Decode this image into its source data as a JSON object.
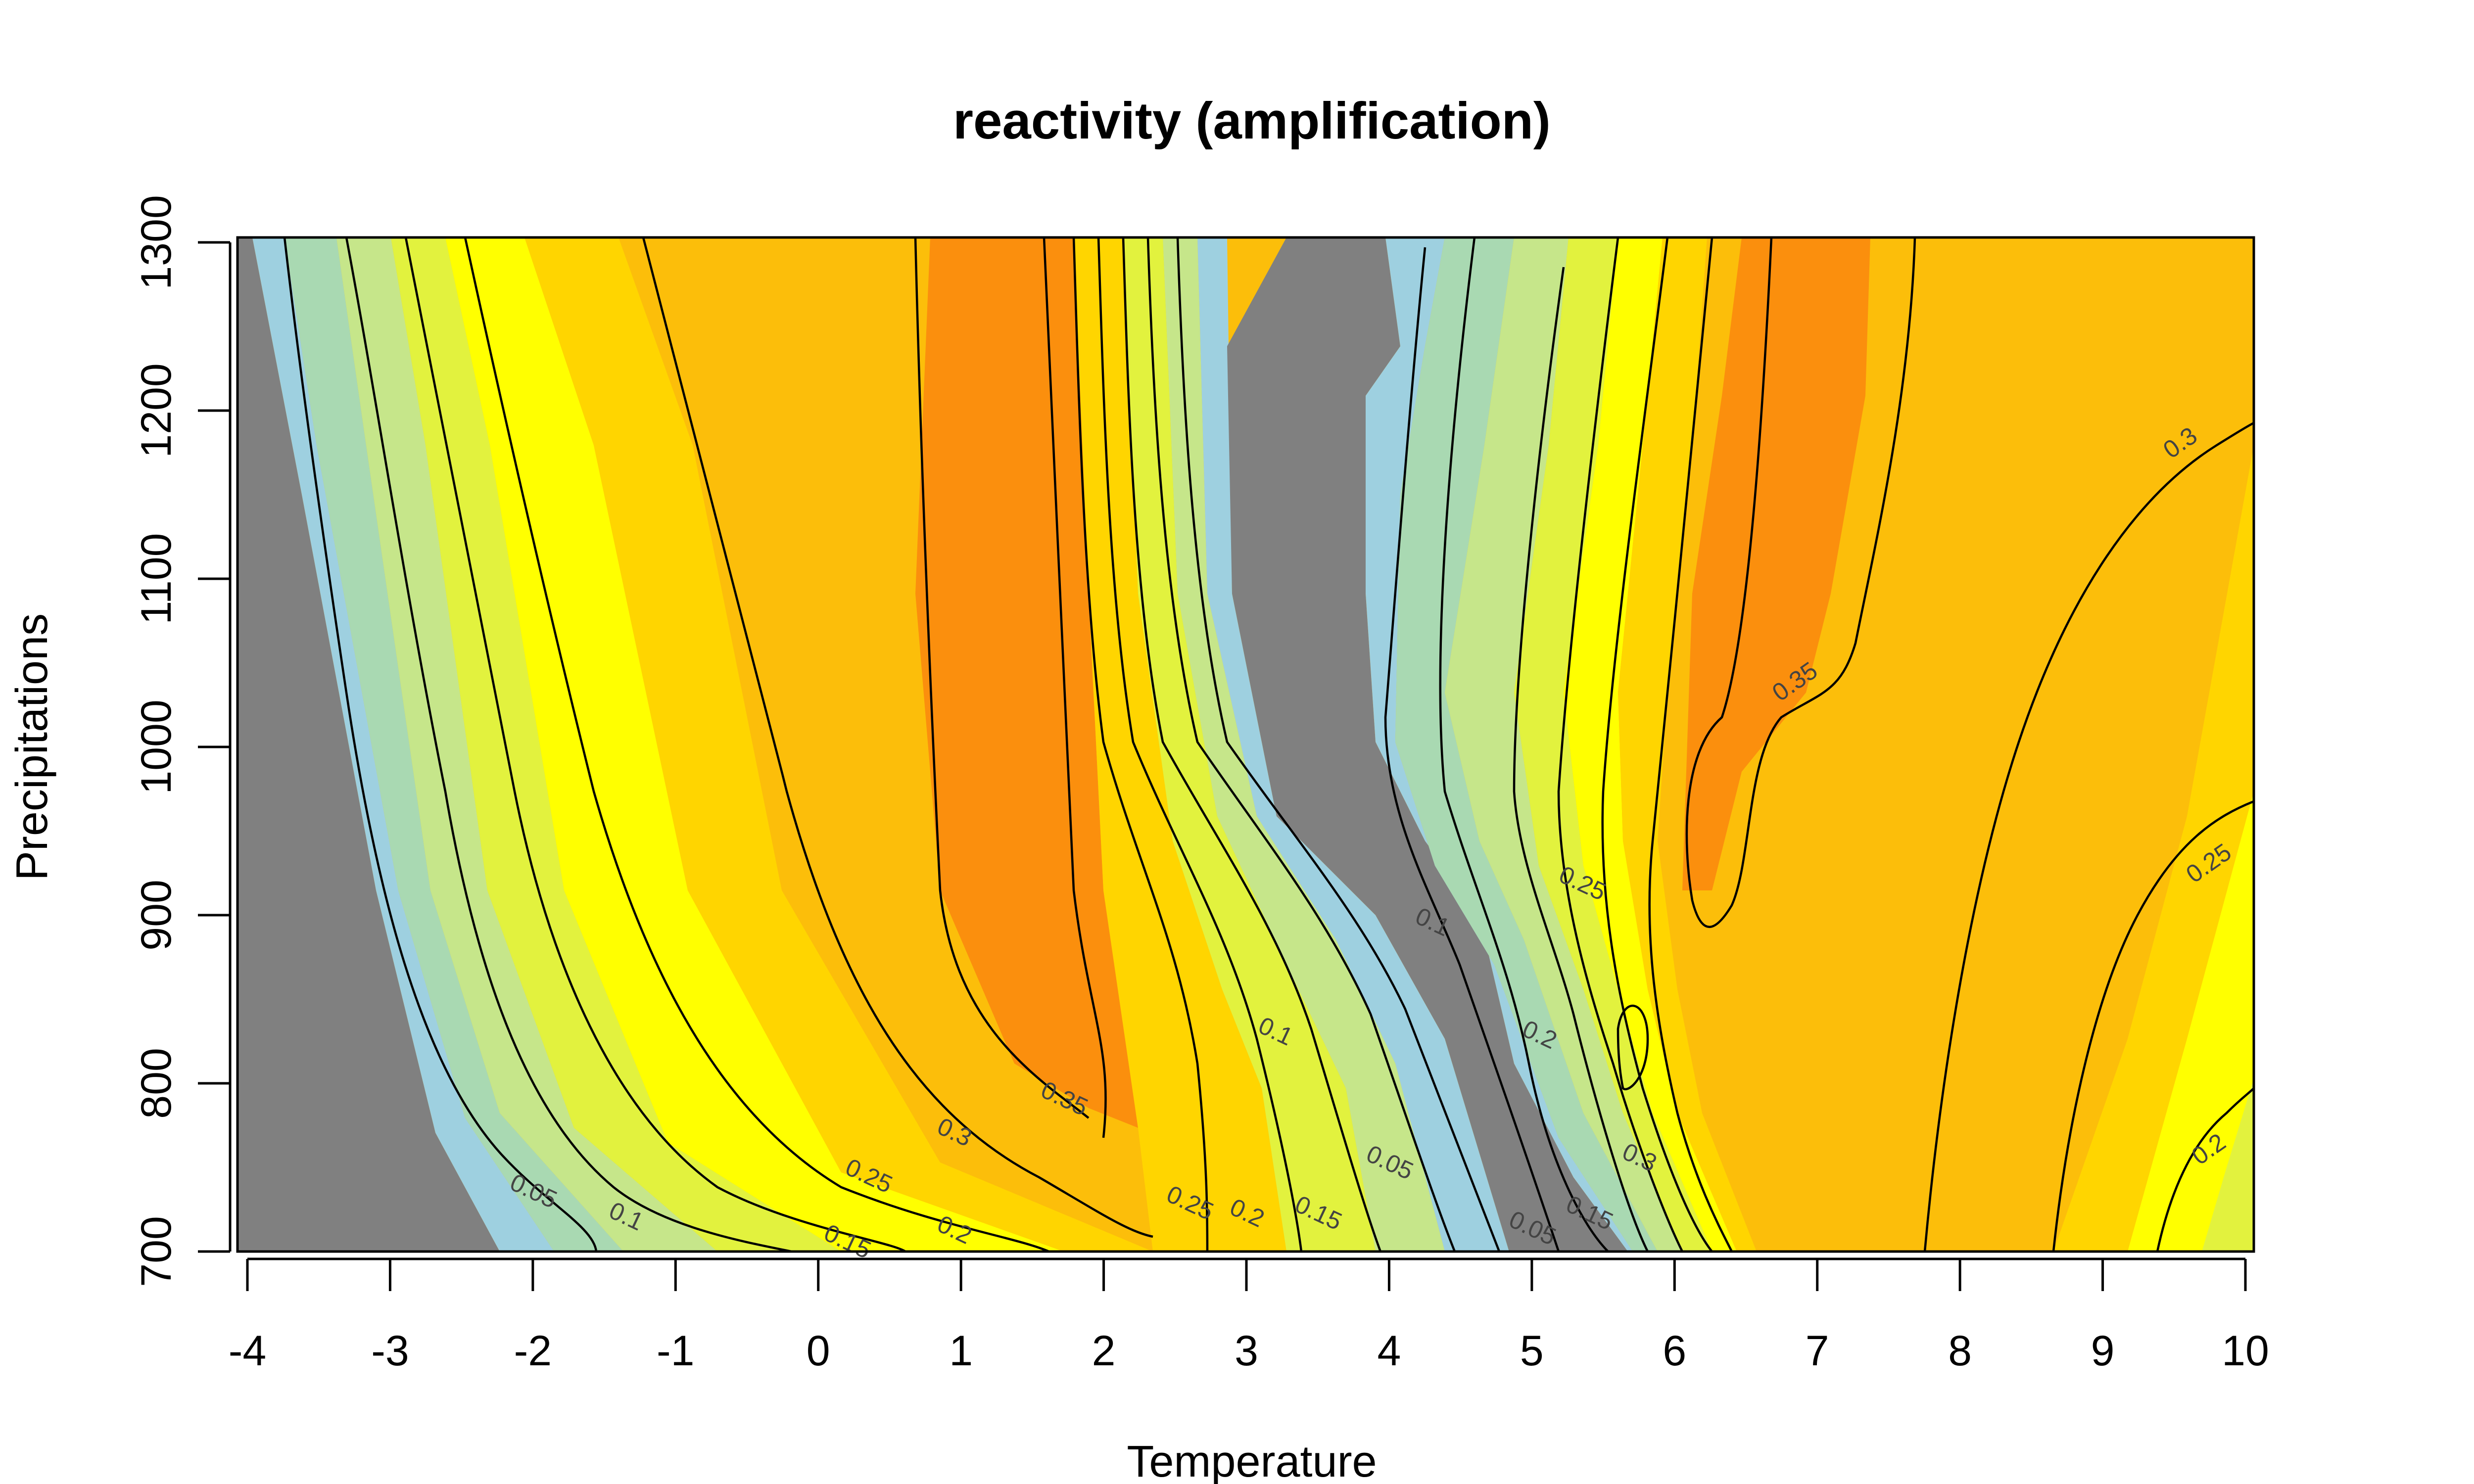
{
  "chart_data": {
    "type": "heatmap",
    "title": "reactivity (amplification)",
    "xlabel": "Temperature",
    "ylabel": "Precipitations",
    "xlim": [
      -4,
      10
    ],
    "ylim": [
      700,
      1300
    ],
    "x_ticks": [
      "-4",
      "-3",
      "-2",
      "-1",
      "0",
      "1",
      "2",
      "3",
      "4",
      "5",
      "6",
      "7",
      "8",
      "9",
      "10"
    ],
    "y_ticks": [
      "700",
      "800",
      "900",
      "1000",
      "1100",
      "1200",
      "1300"
    ],
    "color_levels": [
      {
        "min": null,
        "max": 0.0,
        "color": "#808080"
      },
      {
        "min": 0.0,
        "max": 0.05,
        "color": "#9ED0E0"
      },
      {
        "min": 0.05,
        "max": 0.1,
        "color": "#A9D9B2"
      },
      {
        "min": 0.1,
        "max": 0.15,
        "color": "#C6E68A"
      },
      {
        "min": 0.15,
        "max": 0.2,
        "color": "#E2F23E"
      },
      {
        "min": 0.2,
        "max": 0.25,
        "color": "#FFFF00"
      },
      {
        "min": 0.25,
        "max": 0.3,
        "color": "#FFD500"
      },
      {
        "min": 0.3,
        "max": 0.35,
        "color": "#FCBE0A"
      },
      {
        "min": 0.35,
        "max": null,
        "color": "#FB8F0D"
      }
    ],
    "contour_labels": [
      {
        "text": "0.05",
        "x": -2.0,
        "y": 735
      },
      {
        "text": "0.1",
        "x": -1.35,
        "y": 720
      },
      {
        "text": "0.15",
        "x": 0.2,
        "y": 705
      },
      {
        "text": "0.2",
        "x": 0.95,
        "y": 712
      },
      {
        "text": "0.25",
        "x": 0.35,
        "y": 744
      },
      {
        "text": "0.3",
        "x": 0.95,
        "y": 770
      },
      {
        "text": "0.35",
        "x": 1.72,
        "y": 790
      },
      {
        "text": "0.25",
        "x": 2.6,
        "y": 728
      },
      {
        "text": "0.2",
        "x": 3.0,
        "y": 722
      },
      {
        "text": "0.15",
        "x": 3.5,
        "y": 722
      },
      {
        "text": "0.1",
        "x": 3.2,
        "y": 830
      },
      {
        "text": "0.05",
        "x": 4.0,
        "y": 752
      },
      {
        "text": "0.05",
        "x": 5.0,
        "y": 713
      },
      {
        "text": "0.15",
        "x": 5.4,
        "y": 722
      },
      {
        "text": "0.3",
        "x": 5.75,
        "y": 755
      },
      {
        "text": "0.2",
        "x": 5.05,
        "y": 828
      },
      {
        "text": "0.25",
        "x": 5.35,
        "y": 918
      },
      {
        "text": "0.1",
        "x": 4.3,
        "y": 895
      },
      {
        "text": "0.35",
        "x": 6.85,
        "y": 1038
      },
      {
        "text": "0.3",
        "x": 9.55,
        "y": 1180
      },
      {
        "text": "0.25",
        "x": 9.75,
        "y": 930
      },
      {
        "text": "0.2",
        "x": 9.75,
        "y": 760
      }
    ]
  }
}
